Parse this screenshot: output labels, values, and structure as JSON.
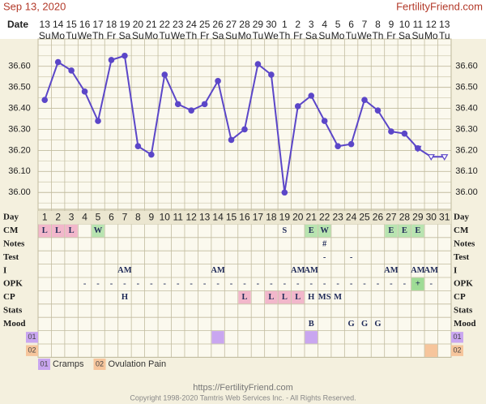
{
  "header": {
    "date": "Sep 13, 2020",
    "site": "FertilityFriend.com"
  },
  "chart_data": {
    "type": "line",
    "x_label": "Date",
    "dates": [
      13,
      14,
      15,
      16,
      17,
      18,
      19,
      20,
      21,
      22,
      23,
      24,
      25,
      26,
      27,
      28,
      29,
      30,
      1,
      2,
      3,
      4,
      5,
      6,
      7,
      8,
      9,
      10,
      11,
      12,
      13
    ],
    "weekdays": [
      "Su",
      "Mo",
      "Tu",
      "We",
      "Th",
      "Fr",
      "Sa",
      "Su",
      "Mo",
      "Tu",
      "We",
      "Th",
      "Fr",
      "Sa",
      "Su",
      "Mo",
      "Tu",
      "We",
      "Th",
      "Fr",
      "Sa",
      "Su",
      "Mo",
      "Tu",
      "We",
      "Th",
      "Fr",
      "Sa",
      "Su",
      "Mo",
      "Tu"
    ],
    "series": [
      {
        "color": "#5b46c8",
        "marker": "triangle-open",
        "values": [
          null,
          null,
          null,
          null,
          null,
          null,
          null,
          null,
          null,
          null,
          null,
          null,
          null,
          null,
          null,
          null,
          null,
          null,
          null,
          null,
          null,
          null,
          null,
          null,
          null,
          null,
          null,
          null,
          36.21,
          36.17,
          36.17
        ]
      },
      {
        "color": "#5b46c8",
        "marker": "circle",
        "values": [
          36.44,
          36.62,
          36.58,
          36.48,
          36.34,
          36.63,
          36.65,
          36.22,
          36.18,
          36.56,
          36.42,
          36.39,
          36.42,
          36.53,
          36.25,
          36.3,
          36.61,
          36.56,
          36.0,
          36.41,
          36.46,
          36.34,
          36.22,
          36.23,
          36.44,
          36.39,
          36.29,
          36.28,
          36.21,
          null,
          null
        ]
      }
    ],
    "ylim": [
      35.92,
      36.73
    ],
    "yticks": [
      {
        "value": 36.0,
        "label": "36.00"
      },
      {
        "value": 36.1,
        "label": "36.10"
      },
      {
        "value": 36.2,
        "label": "36.20"
      },
      {
        "value": 36.3,
        "label": "36.30"
      },
      {
        "value": 36.4,
        "label": "36.40"
      },
      {
        "value": 36.5,
        "label": "36.50"
      },
      {
        "value": 36.6,
        "label": "36.60"
      }
    ],
    "minor_yticks": [
      35.95,
      36.05,
      36.15,
      36.25,
      36.35,
      36.45,
      36.55,
      36.65,
      36.7
    ],
    "grid": true
  },
  "table": {
    "day_label": "Day",
    "days": [
      1,
      2,
      3,
      4,
      5,
      6,
      7,
      8,
      9,
      10,
      11,
      12,
      13,
      14,
      15,
      16,
      17,
      18,
      19,
      20,
      21,
      22,
      23,
      24,
      25,
      26,
      27,
      28,
      29,
      30,
      31
    ],
    "rows": [
      {
        "label": "CM",
        "cells": [
          "L",
          "L",
          "L",
          null,
          "W",
          null,
          null,
          null,
          null,
          null,
          null,
          null,
          null,
          null,
          null,
          null,
          null,
          null,
          "S",
          null,
          "E",
          "W",
          null,
          null,
          null,
          null,
          "E",
          "E",
          "E",
          null,
          null
        ]
      },
      {
        "label": "Notes",
        "cells": [
          null,
          null,
          null,
          null,
          null,
          null,
          null,
          null,
          null,
          null,
          null,
          null,
          null,
          null,
          null,
          null,
          null,
          null,
          null,
          null,
          null,
          "#",
          null,
          null,
          null,
          null,
          null,
          null,
          null,
          null,
          null
        ]
      },
      {
        "label": "Test",
        "cells": [
          null,
          null,
          null,
          null,
          null,
          null,
          null,
          null,
          null,
          null,
          null,
          null,
          null,
          null,
          null,
          null,
          null,
          null,
          null,
          null,
          null,
          "-",
          null,
          "-",
          null,
          null,
          null,
          null,
          null,
          null,
          null
        ]
      },
      {
        "label": "I",
        "cells": [
          null,
          null,
          null,
          null,
          null,
          null,
          "AM",
          null,
          null,
          null,
          null,
          null,
          null,
          "AM",
          null,
          null,
          null,
          null,
          null,
          "AM",
          "AM",
          null,
          null,
          null,
          null,
          null,
          "AM",
          null,
          "AM",
          "AM",
          null
        ]
      },
      {
        "label": "OPK",
        "cells": [
          null,
          null,
          null,
          "-",
          "-",
          "-",
          "-",
          "-",
          "-",
          "-",
          "-",
          "-",
          "-",
          "-",
          "-",
          "-",
          "-",
          "-",
          "-",
          "-",
          "-",
          "-",
          "-",
          "-",
          "-",
          "-",
          "-",
          "-",
          "+",
          "-",
          null
        ]
      },
      {
        "label": "CP",
        "cells": [
          null,
          null,
          null,
          null,
          null,
          null,
          "H",
          null,
          null,
          null,
          null,
          null,
          null,
          null,
          null,
          "L",
          null,
          "L",
          "L",
          "L",
          "H",
          "MS",
          "M",
          null,
          null,
          null,
          null,
          null,
          null,
          null,
          null
        ]
      },
      {
        "label": "Stats",
        "cells": [
          null,
          null,
          null,
          null,
          null,
          null,
          null,
          null,
          null,
          null,
          null,
          null,
          null,
          null,
          null,
          null,
          null,
          null,
          null,
          null,
          null,
          null,
          null,
          null,
          null,
          null,
          null,
          null,
          null,
          null,
          null
        ]
      },
      {
        "label": "Mood",
        "cells": [
          null,
          null,
          null,
          null,
          null,
          null,
          null,
          null,
          null,
          null,
          null,
          null,
          null,
          null,
          null,
          null,
          null,
          null,
          null,
          null,
          "B",
          null,
          null,
          "G",
          "G",
          "G",
          null,
          null,
          null,
          null,
          null
        ]
      }
    ],
    "cell_colors": {
      "L": "#f2b7cb",
      "W": "#b8e4b0",
      "E": "#b8e4b0",
      "+": "#9fdc96"
    }
  },
  "symptoms": [
    {
      "code": "01",
      "name": "Cramps",
      "color": "#c9a6f0",
      "days": [
        14,
        21
      ]
    },
    {
      "code": "02",
      "name": "Ovulation Pain",
      "color": "#f6c59c",
      "days": [
        30
      ]
    }
  ],
  "footer": {
    "url": "https://FertilityFriend.com",
    "copyright": "Copyright 1998-2020 Tamtris Web Services Inc. - All Rights Reserved."
  }
}
